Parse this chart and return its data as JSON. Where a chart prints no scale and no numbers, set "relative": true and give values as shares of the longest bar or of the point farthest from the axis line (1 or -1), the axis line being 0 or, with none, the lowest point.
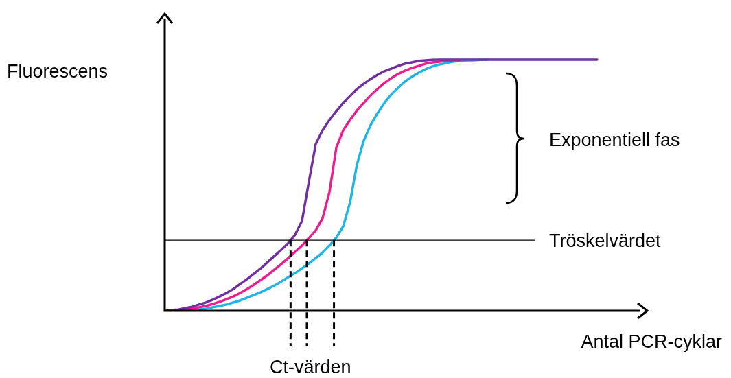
{
  "chart_data": {
    "type": "line",
    "relative": true,
    "ylabel": "Fluorescens",
    "xlabel": "Antal PCR-cyklar",
    "categories": [
      null,
      null,
      null,
      null,
      null,
      null,
      null,
      null,
      null,
      null,
      null,
      null,
      null,
      null,
      null,
      null,
      null,
      null,
      null,
      null,
      null,
      null,
      null,
      null,
      null,
      null,
      null,
      null,
      null,
      null,
      null,
      null,
      null,
      null,
      null,
      null,
      null,
      null,
      null,
      null,
      null,
      null,
      null,
      null,
      null,
      null,
      null,
      null,
      null,
      null,
      null,
      null,
      null,
      null,
      null,
      null,
      null,
      null,
      null,
      null,
      null,
      null,
      null,
      null,
      null,
      null,
      null,
      null,
      null,
      null,
      null
    ],
    "tick_labels": false,
    "legend": false,
    "marker": "none",
    "line_style": "solid",
    "series": [
      {
        "color": "#7030a0",
        "values": [
          0,
          0.003,
          0.005,
          0.011,
          0.016,
          0.025,
          0.033,
          0.044,
          0.057,
          0.071,
          0.087,
          0.107,
          0.126,
          0.148,
          0.169,
          0.194,
          0.219,
          0.243,
          0.27,
          0.303,
          0.358,
          0.514,
          0.664,
          0.719,
          0.76,
          0.795,
          0.828,
          0.855,
          0.883,
          0.904,
          0.923,
          0.94,
          0.954,
          0.964,
          0.975,
          0.984,
          0.989,
          0.995,
          0.997,
          0.999,
          1,
          1,
          1,
          1,
          1,
          1,
          1,
          1,
          1,
          1,
          1,
          1,
          1,
          1,
          1,
          1,
          1,
          1,
          1,
          1,
          1,
          1,
          1,
          1,
          null,
          null,
          null,
          null,
          null,
          null,
          null
        ]
      },
      {
        "color": "#ee1c8c",
        "values": [
          null,
          null,
          0.003,
          0.005,
          0.008,
          0.014,
          0.019,
          0.027,
          0.036,
          0.046,
          0.057,
          0.071,
          0.087,
          0.104,
          0.123,
          0.142,
          0.164,
          0.186,
          0.21,
          0.235,
          0.26,
          0.29,
          0.32,
          0.369,
          0.473,
          0.65,
          0.719,
          0.76,
          0.798,
          0.828,
          0.858,
          0.883,
          0.907,
          0.926,
          0.943,
          0.956,
          0.967,
          0.975,
          0.984,
          0.989,
          0.992,
          0.995,
          0.997,
          0.997,
          null,
          null,
          null,
          null,
          null,
          null,
          null,
          null,
          null,
          null,
          null,
          null,
          null,
          null,
          null,
          null,
          null,
          null,
          null,
          null,
          null,
          null,
          null,
          null,
          null,
          null,
          null
        ]
      },
      {
        "color": "#1fb4e6",
        "values": [
          null,
          null,
          null,
          0.003,
          0.003,
          0.005,
          0.008,
          0.014,
          0.019,
          0.025,
          0.033,
          0.041,
          0.052,
          0.063,
          0.074,
          0.087,
          0.101,
          0.117,
          0.134,
          0.15,
          0.169,
          0.188,
          0.21,
          0.232,
          0.26,
          0.292,
          0.336,
          0.432,
          0.582,
          0.678,
          0.74,
          0.787,
          0.828,
          0.861,
          0.888,
          0.913,
          0.932,
          0.948,
          0.962,
          0.973,
          0.981,
          0.986,
          0.992,
          0.995,
          0.997,
          0.997,
          0.999,
          1,
          null,
          null,
          null,
          null,
          null,
          null,
          null,
          null,
          null,
          null,
          null,
          null,
          null,
          null,
          null,
          null,
          null,
          null,
          null,
          null,
          null,
          null,
          null
        ]
      }
    ],
    "ref_lines": [
      {
        "axis": "y",
        "value": 0.281,
        "label": "Tröskelvärdet",
        "color": "#000000",
        "line_style": "solid"
      }
    ],
    "annotations": [
      "Exponentiell fas",
      "Ct-värden"
    ]
  }
}
